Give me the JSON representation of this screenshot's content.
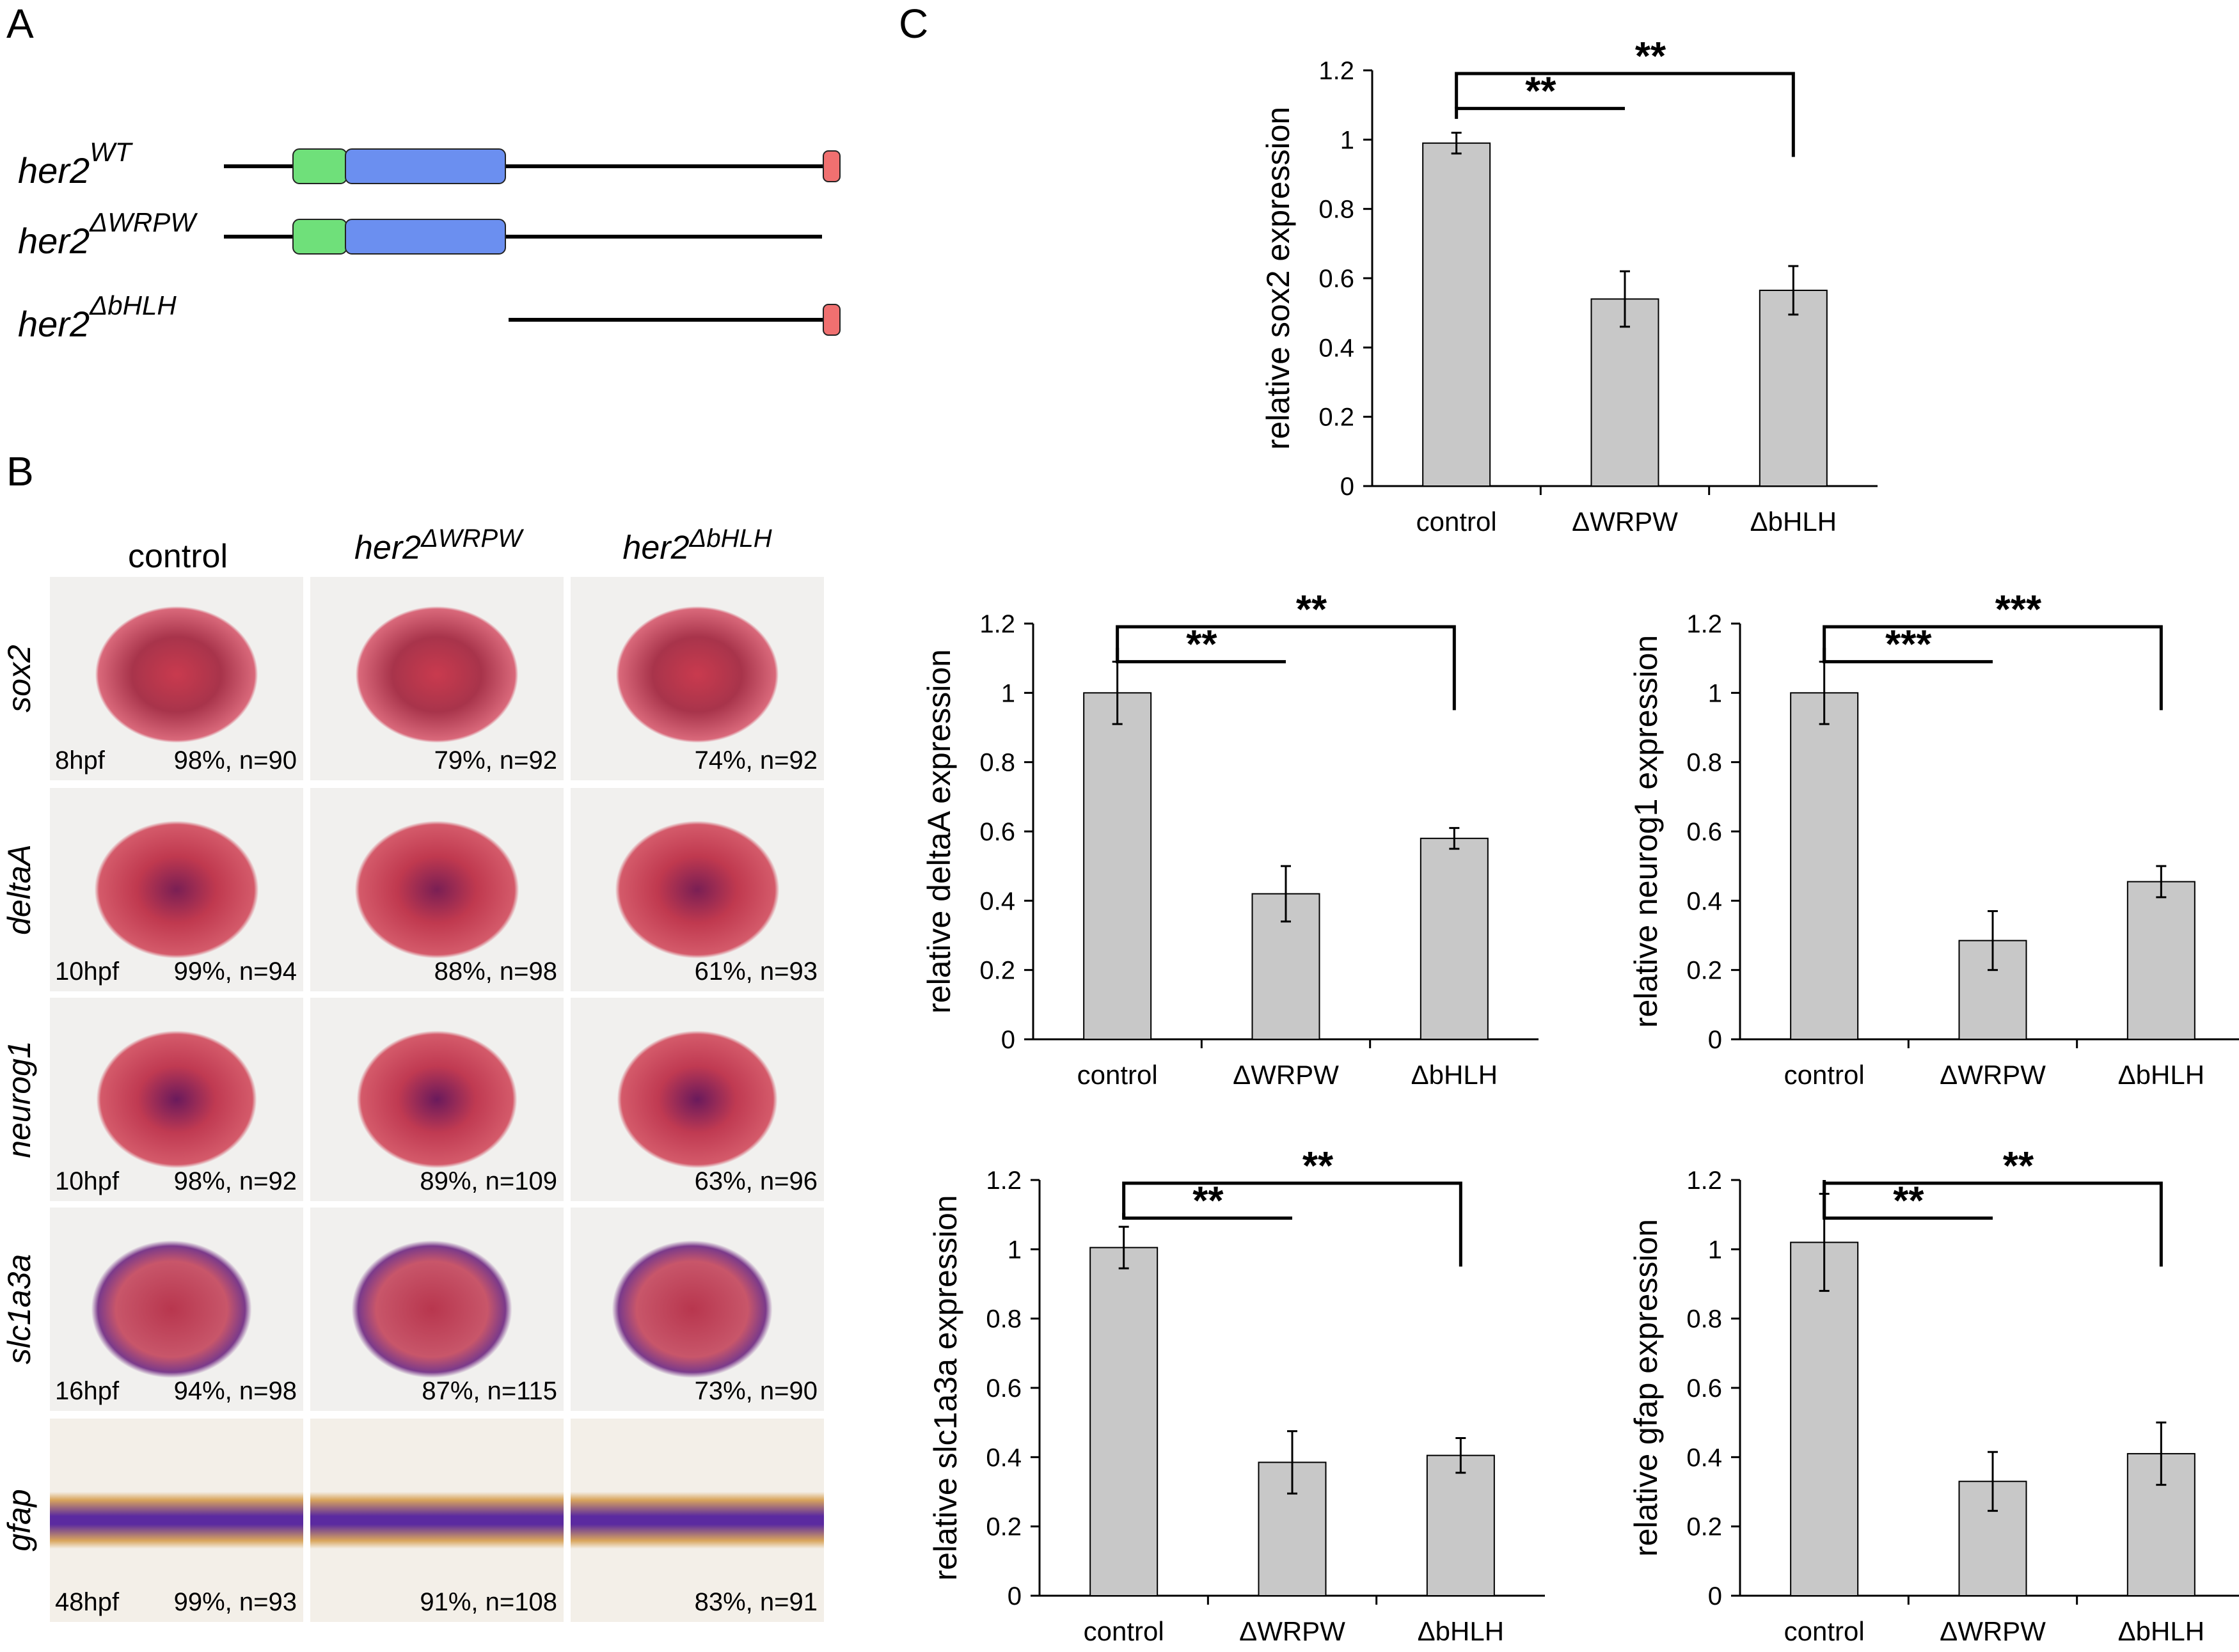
{
  "panel_labels": {
    "a": "A",
    "b": "B",
    "c": "C"
  },
  "constructs": [
    {
      "base": "her2",
      "sup": "WT",
      "domains": [
        "green",
        "blue",
        "red"
      ]
    },
    {
      "base": "her2",
      "sup": "ΔWRPW",
      "domains": [
        "green",
        "blue"
      ]
    },
    {
      "base": "her2",
      "sup": "ΔbHLH",
      "domains": [
        "red"
      ]
    }
  ],
  "domain_colors": {
    "green": "#6fe07a",
    "blue": "#6b8ff0",
    "red": "#f07070"
  },
  "b_columns": [
    {
      "base": "control",
      "sup": ""
    },
    {
      "base": "her2",
      "sup": "ΔWRPW"
    },
    {
      "base": "her2",
      "sup": "ΔbHLH"
    }
  ],
  "b_rows": [
    {
      "gene": "sox2",
      "stage": "8hpf",
      "cells": [
        "98%, n=90",
        "79%, n=92",
        "74%, n=92"
      ]
    },
    {
      "gene": "deltaA",
      "stage": "10hpf",
      "cells": [
        "99%, n=94",
        "88%, n=98",
        "61%, n=93"
      ]
    },
    {
      "gene": "neurog1",
      "stage": "10hpf",
      "cells": [
        "98%, n=92",
        "89%, n=109",
        "63%, n=96"
      ]
    },
    {
      "gene": "slc1a3a",
      "stage": "16hpf",
      "cells": [
        "94%, n=98",
        "87%, n=115",
        "73%, n=90"
      ]
    },
    {
      "gene": "gfap",
      "stage": "48hpf",
      "cells": [
        "99%, n=93",
        "91%, n=108",
        "83%, n=91"
      ]
    }
  ],
  "chart_data": [
    {
      "type": "bar",
      "categories": [
        "control",
        "ΔWRPW",
        "ΔbHLH"
      ],
      "values": [
        0.99,
        0.54,
        0.565
      ],
      "errors": [
        0.03,
        0.08,
        0.07
      ],
      "ylabel": "relative sox2 expression",
      "ylim": [
        0,
        1.2
      ],
      "yticks": [
        "0",
        "0.2",
        "0.4",
        "0.6",
        "0.8",
        "1",
        "1.2"
      ],
      "sig": [
        "**",
        "**"
      ],
      "bar_color": "#c8c8c8"
    },
    {
      "type": "bar",
      "categories": [
        "control",
        "ΔWRPW",
        "ΔbHLH"
      ],
      "values": [
        1.0,
        0.42,
        0.58
      ],
      "errors": [
        0.09,
        0.08,
        0.03
      ],
      "ylabel": "relative deltaA expression",
      "ylim": [
        0,
        1.2
      ],
      "yticks": [
        "0",
        "0.2",
        "0.4",
        "0.6",
        "0.8",
        "1",
        "1.2"
      ],
      "sig": [
        "**",
        "**"
      ],
      "bar_color": "#c8c8c8"
    },
    {
      "type": "bar",
      "categories": [
        "control",
        "ΔWRPW",
        "ΔbHLH"
      ],
      "values": [
        1.0,
        0.285,
        0.455
      ],
      "errors": [
        0.09,
        0.085,
        0.045
      ],
      "ylabel": "relative neurog1 expression",
      "ylim": [
        0,
        1.2
      ],
      "yticks": [
        "0",
        "0.2",
        "0.4",
        "0.6",
        "0.8",
        "1",
        "1.2"
      ],
      "sig": [
        "***",
        "***"
      ],
      "bar_color": "#c8c8c8"
    },
    {
      "type": "bar",
      "categories": [
        "control",
        "ΔWRPW",
        "ΔbHLH"
      ],
      "values": [
        1.005,
        0.385,
        0.405
      ],
      "errors": [
        0.06,
        0.09,
        0.05
      ],
      "ylabel": "relative slc1a3a expression",
      "ylim": [
        0,
        1.2
      ],
      "yticks": [
        "0",
        "0.2",
        "0.4",
        "0.6",
        "0.8",
        "1",
        "1.2"
      ],
      "sig": [
        "**",
        "**"
      ],
      "bar_color": "#c8c8c8"
    },
    {
      "type": "bar",
      "categories": [
        "control",
        "ΔWRPW",
        "ΔbHLH"
      ],
      "values": [
        1.02,
        0.33,
        0.41
      ],
      "errors": [
        0.14,
        0.085,
        0.09
      ],
      "ylabel": "relative gfap expression",
      "ylim": [
        0,
        1.2
      ],
      "yticks": [
        "0",
        "0.2",
        "0.4",
        "0.6",
        "0.8",
        "1",
        "1.2"
      ],
      "sig": [
        "**",
        "**"
      ],
      "bar_color": "#c8c8c8"
    }
  ]
}
